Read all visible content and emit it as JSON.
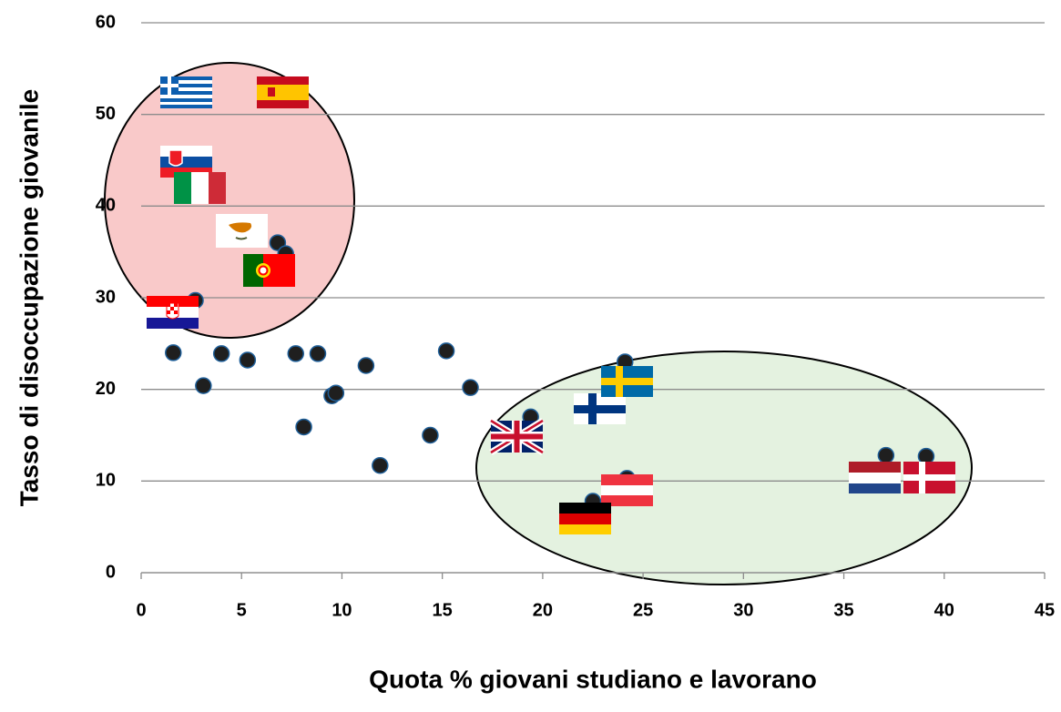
{
  "chart_data": {
    "type": "scatter",
    "x_label": "Quota % giovani studiano e lavorano",
    "y_label": "Tasso di disoccupazione giovanile",
    "x": [
      1.6,
      2.7,
      3.1,
      4.0,
      5.3,
      6.8,
      7.2,
      7.7,
      8.1,
      8.8,
      9.5,
      9.7,
      11.2,
      11.9,
      14.4,
      15.2,
      16.4,
      19.4,
      22.5,
      24.1,
      24.2,
      37.1,
      39.1
    ],
    "values": [
      24.0,
      29.7,
      20.4,
      23.9,
      23.2,
      36.0,
      34.8,
      23.9,
      15.9,
      23.9,
      19.3,
      19.6,
      22.6,
      11.7,
      15.0,
      24.2,
      20.2,
      17.0,
      7.8,
      23.0,
      10.3,
      12.8,
      12.7
    ],
    "color": "#1f1f1f",
    "xlim": [
      0,
      45
    ],
    "xticks": [
      0,
      5,
      10,
      15,
      20,
      25,
      30,
      35,
      40,
      45
    ],
    "ylim": [
      0,
      60
    ],
    "yticks": [
      0,
      10,
      20,
      30,
      40,
      50,
      60
    ],
    "grid": true
  }
}
